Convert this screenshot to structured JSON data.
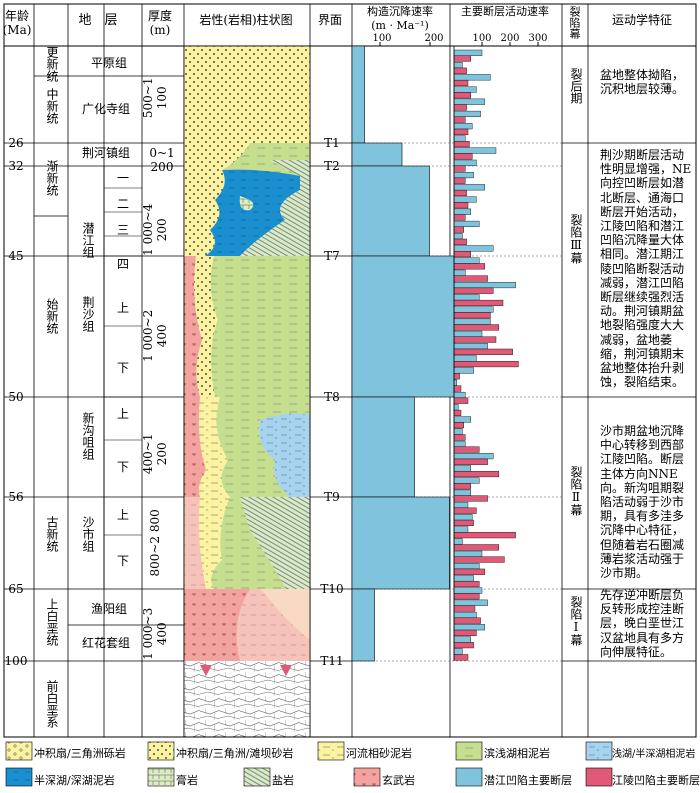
{
  "header": {
    "age": "年龄\n(Ma)",
    "strata": "地　层",
    "thickness": "厚度\n(m)",
    "column": "岩性(岩相)柱状图",
    "interface": "界面",
    "rate_title": "构造沉降速率",
    "rate_unit": "(m · Ma⁻¹)",
    "fault_title": "主要断层活动速率",
    "rift": "裂陷幕",
    "kinematic": "运动学特征"
  },
  "ages": [
    "26",
    "32",
    "45",
    "50",
    "56",
    "65",
    "100"
  ],
  "series": [
    "更新统",
    "中新统",
    "渐新统",
    "始新统",
    "古新统",
    "上白垩统",
    "前白垩系"
  ],
  "formations": [
    "平原组",
    "广化寺组",
    "荆河镇组",
    "潜江组",
    "荆沙组",
    "新沟咀组",
    "沙市组",
    "渔阳组",
    "红花套组"
  ],
  "members": [
    "一",
    "二",
    "三",
    "四",
    "上",
    "下",
    "上",
    "下",
    "上",
    "下"
  ],
  "thicknesses": [
    "500~1 100",
    "0~1 200",
    "1 000~4 200",
    "1 000~2 400",
    "400~1 200",
    "800~2 800",
    "1 000~3 400"
  ],
  "interfaces": [
    "T1",
    "T2",
    "T7",
    "T8",
    "T9",
    "T10",
    "T11"
  ],
  "rifts": [
    "裂后期",
    "裂陷Ⅲ幕",
    "裂陷Ⅱ幕",
    "裂陷Ⅰ幕"
  ],
  "kinematics": [
    "盆地整体拗陷，沉积地层较薄。",
    "荆沙期断层活动性明显增强，NE向控凹断层如潜北断层、通海口断层开始活动，江陵凹陷和潜江凹陷沉降量大体相同。潜江期江陵凹陷断裂活动减弱，潜江凹陷断层继续强烈活动。荆河镇期盆地裂陷强度大大减弱，盆地萎缩，荆河镇期末盆地整体抬升剥蚀，裂陷结束。",
    "沙市期盆地沉降中心转移到西部江陵凹陷。断层主体方向NNE向。新沟咀期裂陷活动弱于沙市期，具有多洼多沉降中心特征，但随着岩石圈减薄岩浆活动强于沙市期。",
    "先存逆冲断层负反转形成控洼断层，晚白垩世江汉盆地具有多方向伸展特征。"
  ],
  "legend": [
    "冲积扇/三角洲砾岩",
    "冲积扇/三角洲/滩坝砂岩",
    "河流相砂泥岩",
    "滨浅湖相泥岩",
    "浅湖/半深湖相泥岩",
    "半深湖/深湖泥岩",
    "膏岩",
    "盐岩",
    "玄武岩",
    "潜江凹陷主要断层",
    "江陵凹陷主要断层"
  ],
  "colors": {
    "qianjiang": "#7fc4dc",
    "jiangling": "#e05a78",
    "sand": "#fbf3a2",
    "green": "#c6df8e",
    "deep": "#1a8fd0",
    "salt": "#d8ebc8",
    "basalt": "#f2a3a0"
  },
  "chart_data": [
    {
      "type": "bar",
      "title": "构造沉降速率",
      "xlabel": "(m · Ma⁻¹)",
      "x_ticks": [
        100,
        200
      ],
      "xlim": [
        0,
        250
      ],
      "y_axis": "age (Ma)",
      "intervals": [
        {
          "from": 0,
          "to": 26,
          "value": 25
        },
        {
          "from": 26,
          "to": 32,
          "value": 100
        },
        {
          "from": 32,
          "to": 45,
          "value": 155
        },
        {
          "from": 45,
          "to": 50,
          "value": 205
        },
        {
          "from": 50,
          "to": 56,
          "value": 125
        },
        {
          "from": 56,
          "to": 65,
          "value": 195
        },
        {
          "from": 65,
          "to": 100,
          "value": 45
        }
      ]
    },
    {
      "type": "bar",
      "title": "主要断层活动速率",
      "x_ticks": [
        100,
        200,
        300
      ],
      "xlim": [
        0,
        340
      ],
      "series": [
        {
          "name": "潜江凹陷主要断层",
          "values": [
            100,
            30,
            130,
            80,
            110,
            95,
            65,
            40,
            150,
            80,
            70,
            110,
            80,
            60,
            90,
            30,
            140,
            90,
            40,
            220,
            90,
            140,
            130,
            100,
            120,
            80,
            70,
            10,
            40,
            15,
            60,
            30,
            40,
            140,
            60,
            90,
            60,
            50,
            65,
            50,
            30,
            100,
            90,
            70,
            100,
            120,
            80,
            110,
            60,
            30
          ]
        },
        {
          "name": "江陵凹陷主要断层",
          "values": [
            60,
            45,
            50,
            60,
            45,
            40,
            50,
            55,
            65,
            40,
            40,
            45,
            50,
            40,
            35,
            45,
            60,
            110,
            120,
            140,
            175,
            130,
            160,
            150,
            210,
            230,
            20,
            25,
            50,
            25,
            35,
            40,
            90,
            120,
            160,
            60,
            120,
            80,
            70,
            220,
            160,
            180,
            110,
            90,
            90,
            75,
            95,
            80,
            70,
            50
          ]
        }
      ]
    }
  ]
}
